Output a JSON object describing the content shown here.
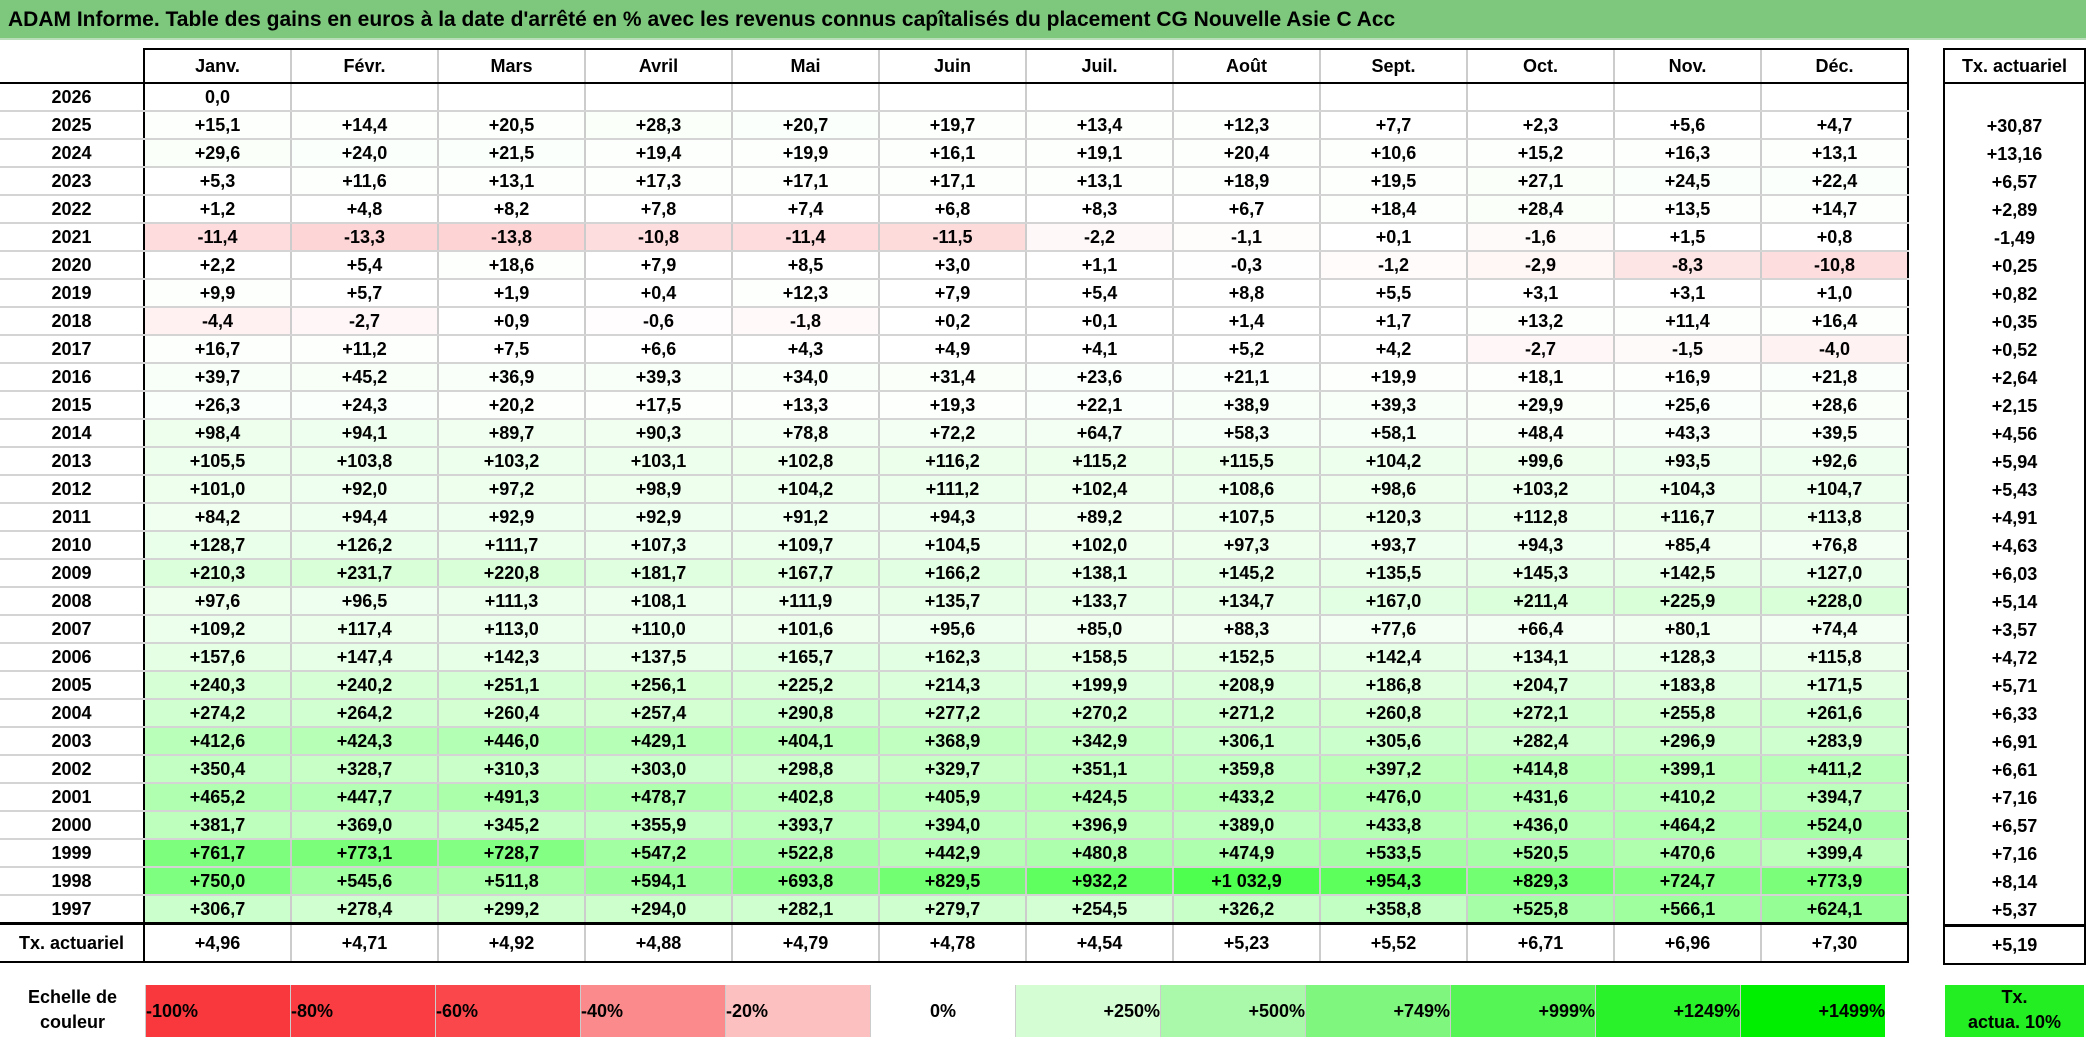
{
  "title": "ADAM Informe. Table des gains en euros à la date d'arrêté en % avec les revenus connus capîtalisés du placement CG Nouvelle Asie C Acc",
  "months": [
    "Janv.",
    "Févr.",
    "Mars",
    "Avril",
    "Mai",
    "Juin",
    "Juil.",
    "Août",
    "Sept.",
    "Oct.",
    "Nov.",
    "Déc."
  ],
  "tx_header": "Tx. actuariel",
  "rows": [
    {
      "year": "2026",
      "values": [
        "0,0",
        "",
        "",
        "",
        "",
        "",
        "",
        "",
        "",
        "",
        "",
        ""
      ],
      "tx": ""
    },
    {
      "year": "2025",
      "values": [
        "+15,1",
        "+14,4",
        "+20,5",
        "+28,3",
        "+20,7",
        "+19,7",
        "+13,4",
        "+12,3",
        "+7,7",
        "+2,3",
        "+5,6",
        "+4,7"
      ],
      "tx": "+30,87"
    },
    {
      "year": "2024",
      "values": [
        "+29,6",
        "+24,0",
        "+21,5",
        "+19,4",
        "+19,9",
        "+16,1",
        "+19,1",
        "+20,4",
        "+10,6",
        "+15,2",
        "+16,3",
        "+13,1"
      ],
      "tx": "+13,16"
    },
    {
      "year": "2023",
      "values": [
        "+5,3",
        "+11,6",
        "+13,1",
        "+17,3",
        "+17,1",
        "+17,1",
        "+13,1",
        "+18,9",
        "+19,5",
        "+27,1",
        "+24,5",
        "+22,4"
      ],
      "tx": "+6,57"
    },
    {
      "year": "2022",
      "values": [
        "+1,2",
        "+4,8",
        "+8,2",
        "+7,8",
        "+7,4",
        "+6,8",
        "+8,3",
        "+6,7",
        "+18,4",
        "+28,4",
        "+13,5",
        "+14,7"
      ],
      "tx": "+2,89"
    },
    {
      "year": "2021",
      "values": [
        "-11,4",
        "-13,3",
        "-13,8",
        "-10,8",
        "-11,4",
        "-11,5",
        "-2,2",
        "-1,1",
        "+0,1",
        "-1,6",
        "+1,5",
        "+0,8"
      ],
      "tx": "-1,49"
    },
    {
      "year": "2020",
      "values": [
        "+2,2",
        "+5,4",
        "+18,6",
        "+7,9",
        "+8,5",
        "+3,0",
        "+1,1",
        "-0,3",
        "-1,2",
        "-2,9",
        "-8,3",
        "-10,8"
      ],
      "tx": "+0,25"
    },
    {
      "year": "2019",
      "values": [
        "+9,9",
        "+5,7",
        "+1,9",
        "+0,4",
        "+12,3",
        "+7,9",
        "+5,4",
        "+8,8",
        "+5,5",
        "+3,1",
        "+3,1",
        "+1,0"
      ],
      "tx": "+0,82"
    },
    {
      "year": "2018",
      "values": [
        "-4,4",
        "-2,7",
        "+0,9",
        "-0,6",
        "-1,8",
        "+0,2",
        "+0,1",
        "+1,4",
        "+1,7",
        "+13,2",
        "+11,4",
        "+16,4"
      ],
      "tx": "+0,35"
    },
    {
      "year": "2017",
      "values": [
        "+16,7",
        "+11,2",
        "+7,5",
        "+6,6",
        "+4,3",
        "+4,9",
        "+4,1",
        "+5,2",
        "+4,2",
        "-2,7",
        "-1,5",
        "-4,0"
      ],
      "tx": "+0,52"
    },
    {
      "year": "2016",
      "values": [
        "+39,7",
        "+45,2",
        "+36,9",
        "+39,3",
        "+34,0",
        "+31,4",
        "+23,6",
        "+21,1",
        "+19,9",
        "+18,1",
        "+16,9",
        "+21,8"
      ],
      "tx": "+2,64"
    },
    {
      "year": "2015",
      "values": [
        "+26,3",
        "+24,3",
        "+20,2",
        "+17,5",
        "+13,3",
        "+19,3",
        "+22,1",
        "+38,9",
        "+39,3",
        "+29,9",
        "+25,6",
        "+28,6"
      ],
      "tx": "+2,15"
    },
    {
      "year": "2014",
      "values": [
        "+98,4",
        "+94,1",
        "+89,7",
        "+90,3",
        "+78,8",
        "+72,2",
        "+64,7",
        "+58,3",
        "+58,1",
        "+48,4",
        "+43,3",
        "+39,5"
      ],
      "tx": "+4,56"
    },
    {
      "year": "2013",
      "values": [
        "+105,5",
        "+103,8",
        "+103,2",
        "+103,1",
        "+102,8",
        "+116,2",
        "+115,2",
        "+115,5",
        "+104,2",
        "+99,6",
        "+93,5",
        "+92,6"
      ],
      "tx": "+5,94"
    },
    {
      "year": "2012",
      "values": [
        "+101,0",
        "+92,0",
        "+97,2",
        "+98,9",
        "+104,2",
        "+111,2",
        "+102,4",
        "+108,6",
        "+98,6",
        "+103,2",
        "+104,3",
        "+104,7"
      ],
      "tx": "+5,43"
    },
    {
      "year": "2011",
      "values": [
        "+84,2",
        "+94,4",
        "+92,9",
        "+92,9",
        "+91,2",
        "+94,3",
        "+89,2",
        "+107,5",
        "+120,3",
        "+112,8",
        "+116,7",
        "+113,8"
      ],
      "tx": "+4,91"
    },
    {
      "year": "2010",
      "values": [
        "+128,7",
        "+126,2",
        "+111,7",
        "+107,3",
        "+109,7",
        "+104,5",
        "+102,0",
        "+97,3",
        "+93,7",
        "+94,3",
        "+85,4",
        "+76,8"
      ],
      "tx": "+4,63"
    },
    {
      "year": "2009",
      "values": [
        "+210,3",
        "+231,7",
        "+220,8",
        "+181,7",
        "+167,7",
        "+166,2",
        "+138,1",
        "+145,2",
        "+135,5",
        "+145,3",
        "+142,5",
        "+127,0"
      ],
      "tx": "+6,03"
    },
    {
      "year": "2008",
      "values": [
        "+97,6",
        "+96,5",
        "+111,3",
        "+108,1",
        "+111,9",
        "+135,7",
        "+133,7",
        "+134,7",
        "+167,0",
        "+211,4",
        "+225,9",
        "+228,0"
      ],
      "tx": "+5,14"
    },
    {
      "year": "2007",
      "values": [
        "+109,2",
        "+117,4",
        "+113,0",
        "+110,0",
        "+101,6",
        "+95,6",
        "+85,0",
        "+88,3",
        "+77,6",
        "+66,4",
        "+80,1",
        "+74,4"
      ],
      "tx": "+3,57"
    },
    {
      "year": "2006",
      "values": [
        "+157,6",
        "+147,4",
        "+142,3",
        "+137,5",
        "+165,7",
        "+162,3",
        "+158,5",
        "+152,5",
        "+142,4",
        "+134,1",
        "+128,3",
        "+115,8"
      ],
      "tx": "+4,72"
    },
    {
      "year": "2005",
      "values": [
        "+240,3",
        "+240,2",
        "+251,1",
        "+256,1",
        "+225,2",
        "+214,3",
        "+199,9",
        "+208,9",
        "+186,8",
        "+204,7",
        "+183,8",
        "+171,5"
      ],
      "tx": "+5,71"
    },
    {
      "year": "2004",
      "values": [
        "+274,2",
        "+264,2",
        "+260,4",
        "+257,4",
        "+290,8",
        "+277,2",
        "+270,2",
        "+271,2",
        "+260,8",
        "+272,1",
        "+255,8",
        "+261,6"
      ],
      "tx": "+6,33"
    },
    {
      "year": "2003",
      "values": [
        "+412,6",
        "+424,3",
        "+446,0",
        "+429,1",
        "+404,1",
        "+368,9",
        "+342,9",
        "+306,1",
        "+305,6",
        "+282,4",
        "+296,9",
        "+283,9"
      ],
      "tx": "+6,91"
    },
    {
      "year": "2002",
      "values": [
        "+350,4",
        "+328,7",
        "+310,3",
        "+303,0",
        "+298,8",
        "+329,7",
        "+351,1",
        "+359,8",
        "+397,2",
        "+414,8",
        "+399,1",
        "+411,2"
      ],
      "tx": "+6,61"
    },
    {
      "year": "2001",
      "values": [
        "+465,2",
        "+447,7",
        "+491,3",
        "+478,7",
        "+402,8",
        "+405,9",
        "+424,5",
        "+433,2",
        "+476,0",
        "+431,6",
        "+410,2",
        "+394,7"
      ],
      "tx": "+7,16"
    },
    {
      "year": "2000",
      "values": [
        "+381,7",
        "+369,0",
        "+345,2",
        "+355,9",
        "+393,7",
        "+394,0",
        "+396,9",
        "+389,0",
        "+433,8",
        "+436,0",
        "+464,2",
        "+524,0"
      ],
      "tx": "+6,57"
    },
    {
      "year": "1999",
      "values": [
        "+761,7",
        "+773,1",
        "+728,7",
        "+547,2",
        "+522,8",
        "+442,9",
        "+480,8",
        "+474,9",
        "+533,5",
        "+520,5",
        "+470,6",
        "+399,4"
      ],
      "tx": "+7,16"
    },
    {
      "year": "1998",
      "values": [
        "+750,0",
        "+545,6",
        "+511,8",
        "+594,1",
        "+693,8",
        "+829,5",
        "+932,2",
        "+1 032,9",
        "+954,3",
        "+829,3",
        "+724,7",
        "+773,9"
      ],
      "tx": "+8,14"
    },
    {
      "year": "1997",
      "values": [
        "+306,7",
        "+278,4",
        "+299,2",
        "+294,0",
        "+282,1",
        "+279,7",
        "+254,5",
        "+326,2",
        "+358,8",
        "+525,8",
        "+566,1",
        "+624,1"
      ],
      "tx": "+5,37"
    }
  ],
  "totals": {
    "label": "Tx. actuariel",
    "values": [
      "+4,96",
      "+4,71",
      "+4,92",
      "+4,88",
      "+4,79",
      "+4,78",
      "+4,54",
      "+5,23",
      "+5,52",
      "+6,71",
      "+6,96",
      "+7,30"
    ],
    "tx": "+5,19"
  },
  "legend": {
    "label_line1": "Echelle de",
    "label_line2": "couleur",
    "items": [
      {
        "label": "-100%",
        "color": "#f8383d",
        "align": "left"
      },
      {
        "label": "-80%",
        "color": "#f93d42",
        "align": "left"
      },
      {
        "label": "-60%",
        "color": "#f9474c",
        "align": "left"
      },
      {
        "label": "-40%",
        "color": "#fa8a8c",
        "align": "left"
      },
      {
        "label": "-20%",
        "color": "#fcc0c1",
        "align": "left"
      },
      {
        "label": "0%",
        "color": "#ffffff",
        "align": "center"
      },
      {
        "label": "+250%",
        "color": "#d4fdd4",
        "align": "right"
      },
      {
        "label": "+500%",
        "color": "#aaf9aa",
        "align": "right"
      },
      {
        "label": "+749%",
        "color": "#7ff77f",
        "align": "right"
      },
      {
        "label": "+999%",
        "color": "#55f555",
        "align": "right"
      },
      {
        "label": "+1249%",
        "color": "#2af22a",
        "align": "right"
      },
      {
        "label": "+1499%",
        "color": "#00ee00",
        "align": "right"
      }
    ],
    "tx_line1": "Tx.",
    "tx_line2": "actua. 10%",
    "tx_color": "#22ee22"
  },
  "colors": {
    "positive_max": "#00ff00",
    "negative_max": "#f8393e",
    "title_bg": "#7dc87d"
  }
}
